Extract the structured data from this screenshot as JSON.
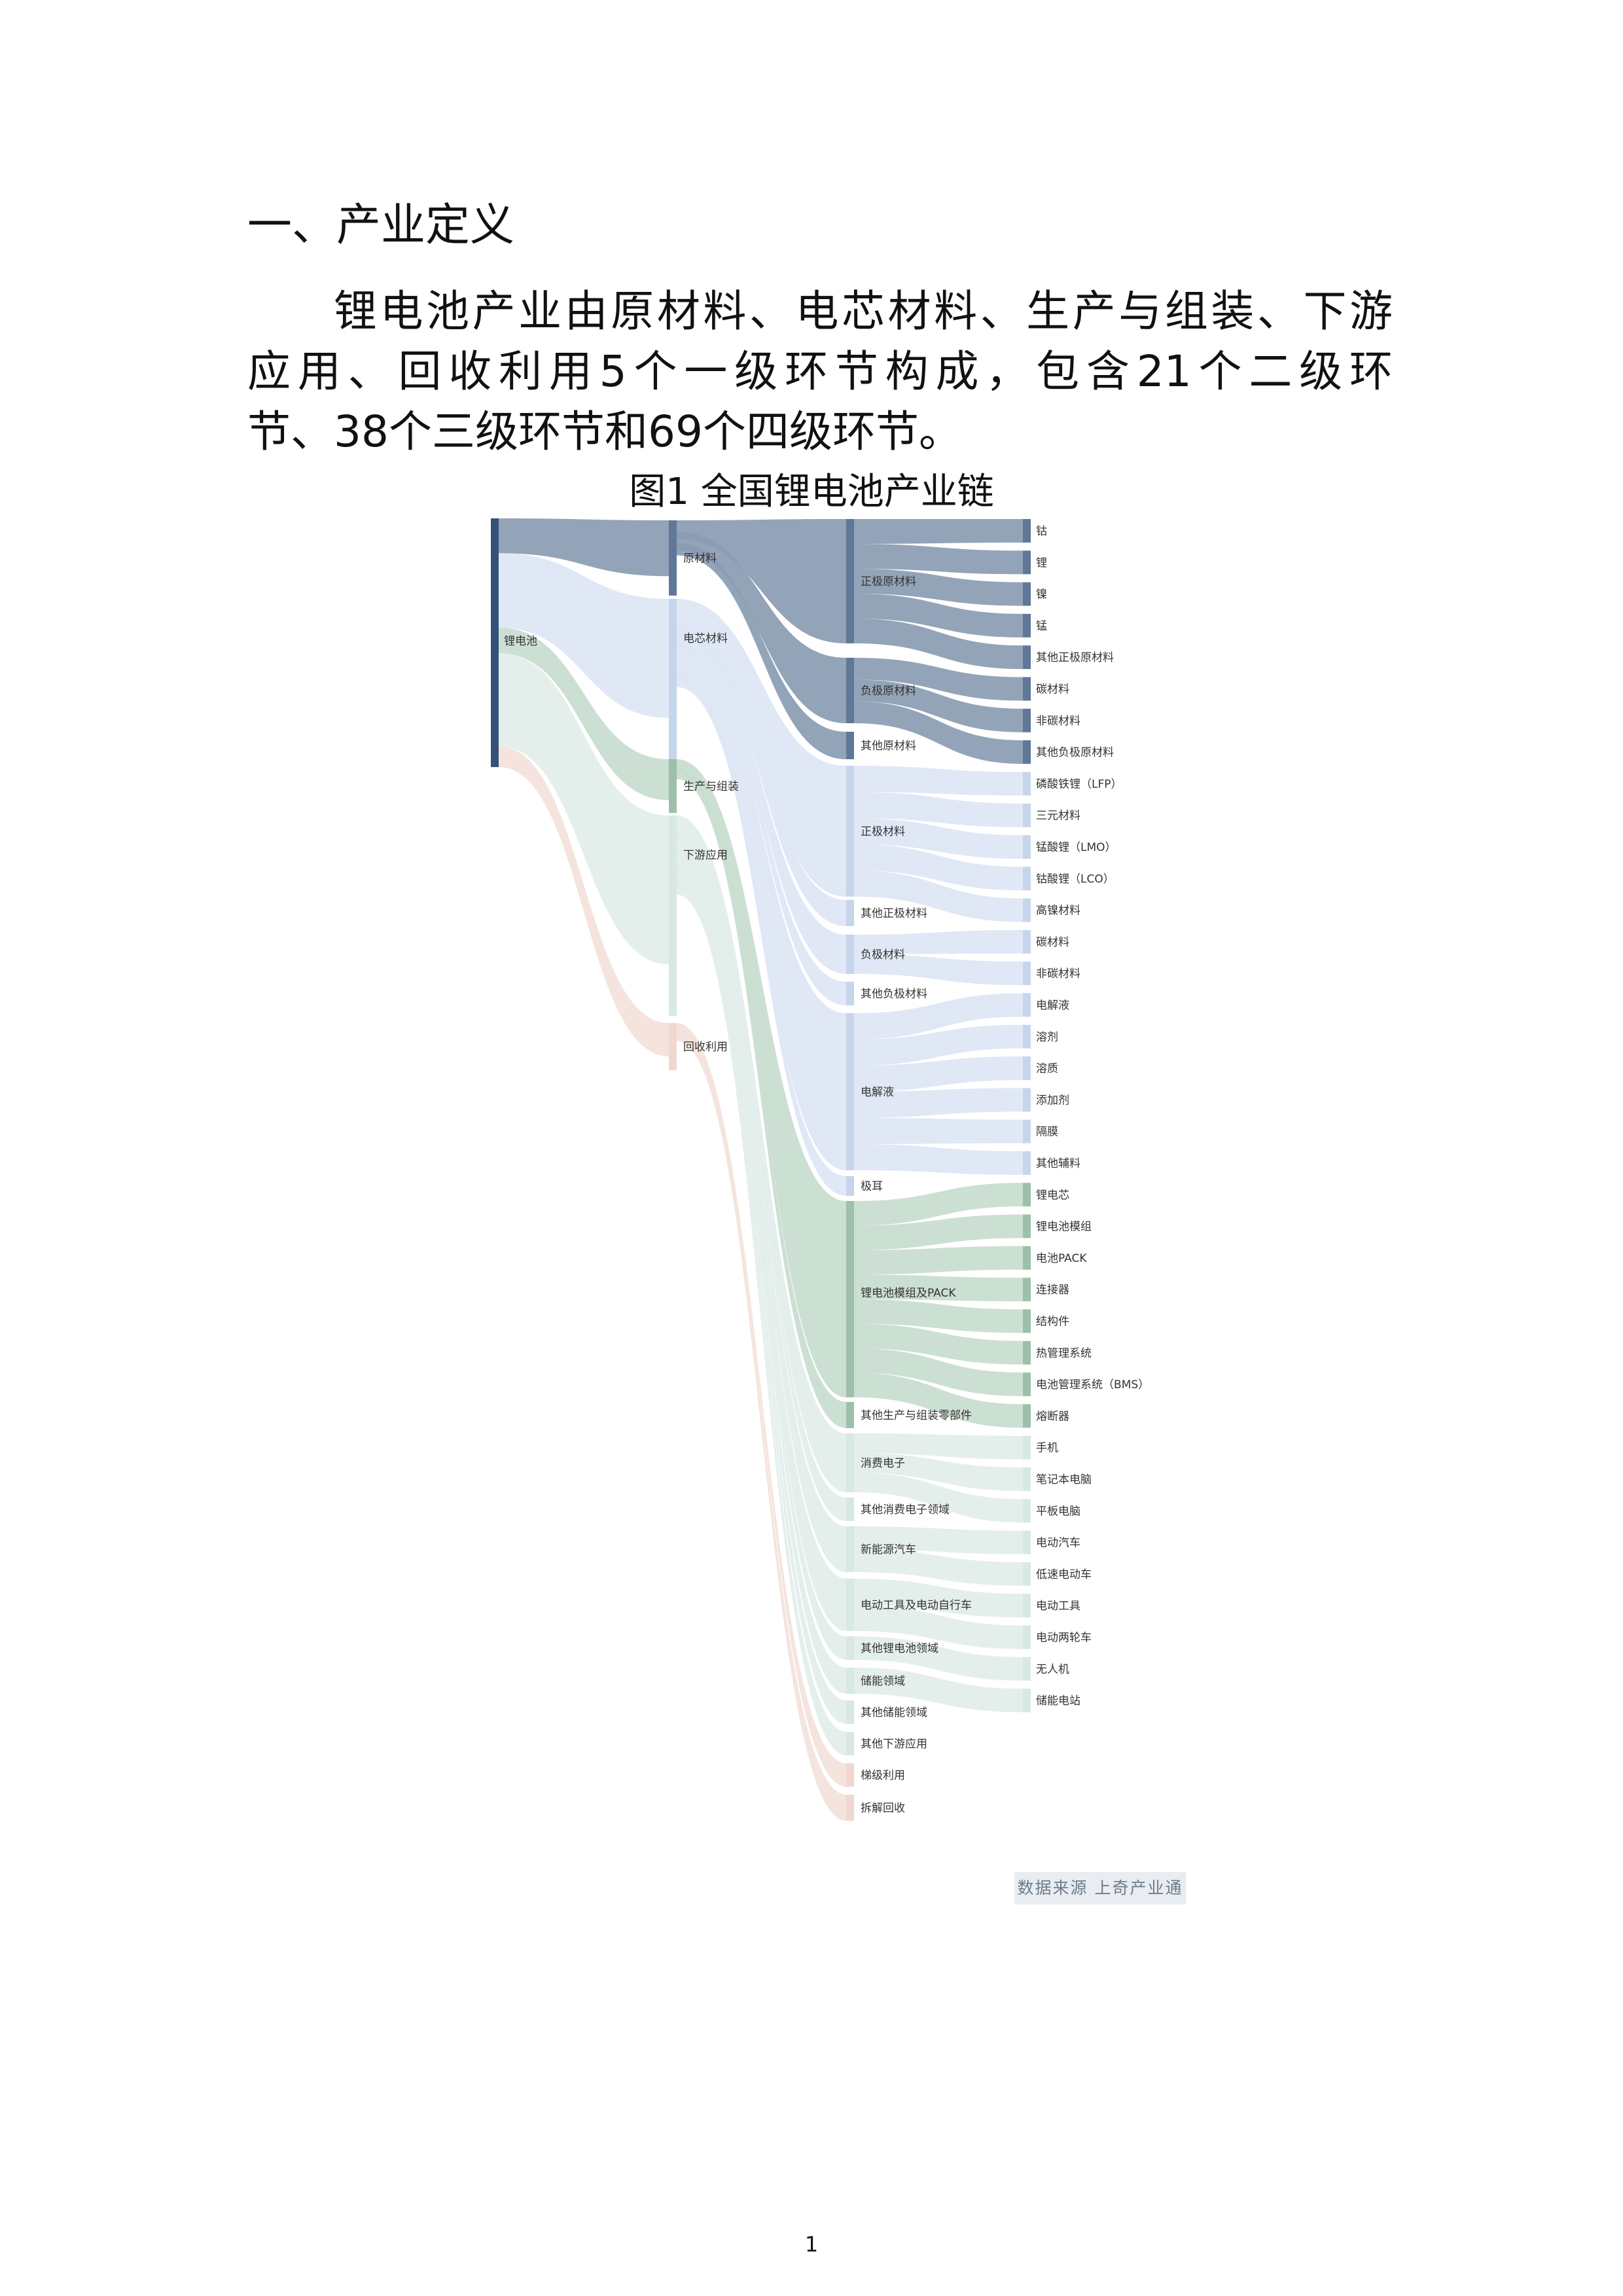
{
  "heading": "一、产业定义",
  "paragraph": {
    "line1": "锂电池产业由原材料、电芯材料、生产与组装、下游",
    "line2": "应用、回收利用5个一级环节构成，包含21个二级环",
    "line3": "节、38个三级环节和69个四级环节。"
  },
  "figure": {
    "title": "图1 全国锂电池产业链",
    "source": "数据来源 上奇产业通"
  },
  "colors": {
    "root": "#34527a",
    "raw": "#5f7898",
    "cell": "#c6d5ec",
    "assembly": "#9ebfa9",
    "downstream": "#d8e8e3",
    "recycle": "#f1d8ce",
    "link_raw": "#8a9cb2",
    "link_cell": "#dde6f5",
    "link_assembly": "#c8dccf",
    "link_downstream": "#e2eeea",
    "link_recycle": "#f4e2db"
  },
  "chart_data": {
    "type": "sankey",
    "level1": [
      {
        "name": "锂电池",
        "group": "root",
        "value": 100
      }
    ],
    "level2": [
      {
        "name": "原材料",
        "group": "raw",
        "value": 15
      },
      {
        "name": "电芯材料",
        "group": "cell",
        "value": 32
      },
      {
        "name": "生产与组装",
        "group": "assembly",
        "value": 11
      },
      {
        "name": "下游应用",
        "group": "downstream",
        "value": 40
      },
      {
        "name": "回收利用",
        "group": "recycle",
        "value": 9
      }
    ],
    "level3": [
      {
        "name": "正极原材料",
        "parent": "原材料",
        "value": 6
      },
      {
        "name": "负极原材料",
        "parent": "原材料",
        "value": 4
      },
      {
        "name": "其他原材料",
        "parent": "原材料",
        "value": 1
      },
      {
        "name": "正极材料",
        "parent": "电芯材料",
        "value": 5
      },
      {
        "name": "其他正极材料",
        "parent": "电芯材料",
        "value": 1
      },
      {
        "name": "负极材料",
        "parent": "电芯材料",
        "value": 2
      },
      {
        "name": "其他负极材料",
        "parent": "电芯材料",
        "value": 1
      },
      {
        "name": "电解液",
        "parent": "电芯材料",
        "value": 6
      },
      {
        "name": "极耳",
        "parent": "电芯材料",
        "value": 1
      },
      {
        "name": "锂电池模组及PACK",
        "parent": "生产与组装",
        "value": 8
      },
      {
        "name": "其他生产与组装零部件",
        "parent": "生产与组装",
        "value": 1
      },
      {
        "name": "消费电子",
        "parent": "下游应用",
        "value": 3
      },
      {
        "name": "其他消费电子领域",
        "parent": "下游应用",
        "value": 1
      },
      {
        "name": "新能源汽车",
        "parent": "下游应用",
        "value": 2
      },
      {
        "name": "电动工具及电动自行车",
        "parent": "下游应用",
        "value": 2
      },
      {
        "name": "其他锂电池领域",
        "parent": "下游应用",
        "value": 1
      },
      {
        "name": "储能领域",
        "parent": "下游应用",
        "value": 1
      },
      {
        "name": "其他储能领域",
        "parent": "下游应用",
        "value": 1
      },
      {
        "name": "其他下游应用",
        "parent": "下游应用",
        "value": 1
      },
      {
        "name": "梯级利用",
        "parent": "回收利用",
        "value": 1
      },
      {
        "name": "拆解回收",
        "parent": "回收利用",
        "value": 1
      }
    ],
    "level4": [
      {
        "name": "钴",
        "parent": "正极原材料"
      },
      {
        "name": "锂",
        "parent": "正极原材料"
      },
      {
        "name": "镍",
        "parent": "正极原材料"
      },
      {
        "name": "锰",
        "parent": "正极原材料"
      },
      {
        "name": "其他正极原材料",
        "parent": "正极原材料"
      },
      {
        "name": "碳材料",
        "parent": "负极原材料"
      },
      {
        "name": "非碳材料",
        "parent": "负极原材料"
      },
      {
        "name": "其他负极原材料",
        "parent": "负极原材料"
      },
      {
        "name": "磷酸铁锂（LFP）",
        "parent": "正极材料"
      },
      {
        "name": "三元材料",
        "parent": "正极材料"
      },
      {
        "name": "锰酸锂（LMO）",
        "parent": "正极材料"
      },
      {
        "name": "钴酸锂（LCO）",
        "parent": "正极材料"
      },
      {
        "name": "高镍材料",
        "parent": "正极材料"
      },
      {
        "name": "碳材料",
        "parent": "负极材料"
      },
      {
        "name": "非碳材料",
        "parent": "负极材料"
      },
      {
        "name": "电解液",
        "parent": "电解液"
      },
      {
        "name": "溶剂",
        "parent": "电解液"
      },
      {
        "name": "溶质",
        "parent": "电解液"
      },
      {
        "name": "添加剂",
        "parent": "电解液"
      },
      {
        "name": "隔膜",
        "parent": "电解液"
      },
      {
        "name": "其他辅料",
        "parent": "电解液"
      },
      {
        "name": "锂电芯",
        "parent": "锂电池模组及PACK"
      },
      {
        "name": "锂电池模组",
        "parent": "锂电池模组及PACK"
      },
      {
        "name": "电池PACK",
        "parent": "锂电池模组及PACK"
      },
      {
        "name": "连接器",
        "parent": "锂电池模组及PACK"
      },
      {
        "name": "结构件",
        "parent": "锂电池模组及PACK"
      },
      {
        "name": "热管理系统",
        "parent": "锂电池模组及PACK"
      },
      {
        "name": "电池管理系统（BMS）",
        "parent": "锂电池模组及PACK"
      },
      {
        "name": "熔断器",
        "parent": "锂电池模组及PACK"
      },
      {
        "name": "手机",
        "parent": "消费电子"
      },
      {
        "name": "笔记本电脑",
        "parent": "消费电子"
      },
      {
        "name": "平板电脑",
        "parent": "消费电子"
      },
      {
        "name": "电动汽车",
        "parent": "新能源汽车"
      },
      {
        "name": "低速电动车",
        "parent": "新能源汽车"
      },
      {
        "name": "电动工具",
        "parent": "电动工具及电动自行车"
      },
      {
        "name": "电动两轮车",
        "parent": "电动工具及电动自行车"
      },
      {
        "name": "无人机",
        "parent": "其他锂电池领域"
      },
      {
        "name": "储能电站",
        "parent": "储能领域"
      }
    ]
  },
  "page_number": "1"
}
